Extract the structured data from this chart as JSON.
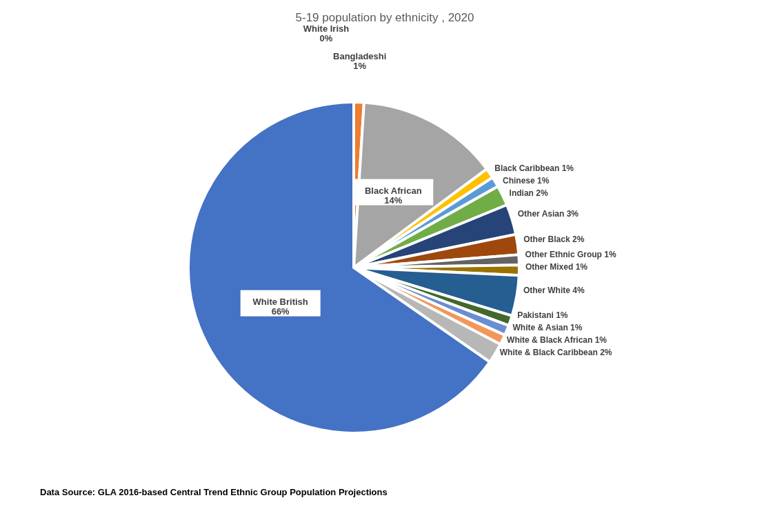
{
  "chart_data": {
    "type": "pie",
    "title": "5-19 population by ethnicity , 2020",
    "categories": [
      "White Irish",
      "Bangladeshi",
      "Black African",
      "Black Caribbean",
      "Chinese",
      "Indian",
      "Other Asian",
      "Other Black",
      "Other Ethnic Group",
      "Other Mixed",
      "Other White",
      "Pakistani",
      "White & Asian",
      "White & Black African",
      "White & Black Caribbean",
      "White British"
    ],
    "values": [
      0,
      1,
      14,
      1,
      1,
      2,
      3,
      2,
      1,
      1,
      4,
      1,
      1,
      1,
      2,
      66
    ],
    "value_labels": [
      "0%",
      "1%",
      "14%",
      "1%",
      "1%",
      "2%",
      "3%",
      "2%",
      "1%",
      "1%",
      "4%",
      "1%",
      "1%",
      "1%",
      "2%",
      "66%"
    ],
    "colors": [
      "#5b9bd5",
      "#ed7d31",
      "#a5a5a5",
      "#ffc000",
      "#5b9bd5",
      "#70ad47",
      "#264478",
      "#9e480e",
      "#636363",
      "#997300",
      "#255e91",
      "#43682b",
      "#698ed0",
      "#f1975a",
      "#b7b7b7",
      "#4472c4"
    ],
    "annotations": [
      "Data Source: GLA 2016-based Central Trend Ethnic Group Population Projections"
    ],
    "legend": false
  }
}
